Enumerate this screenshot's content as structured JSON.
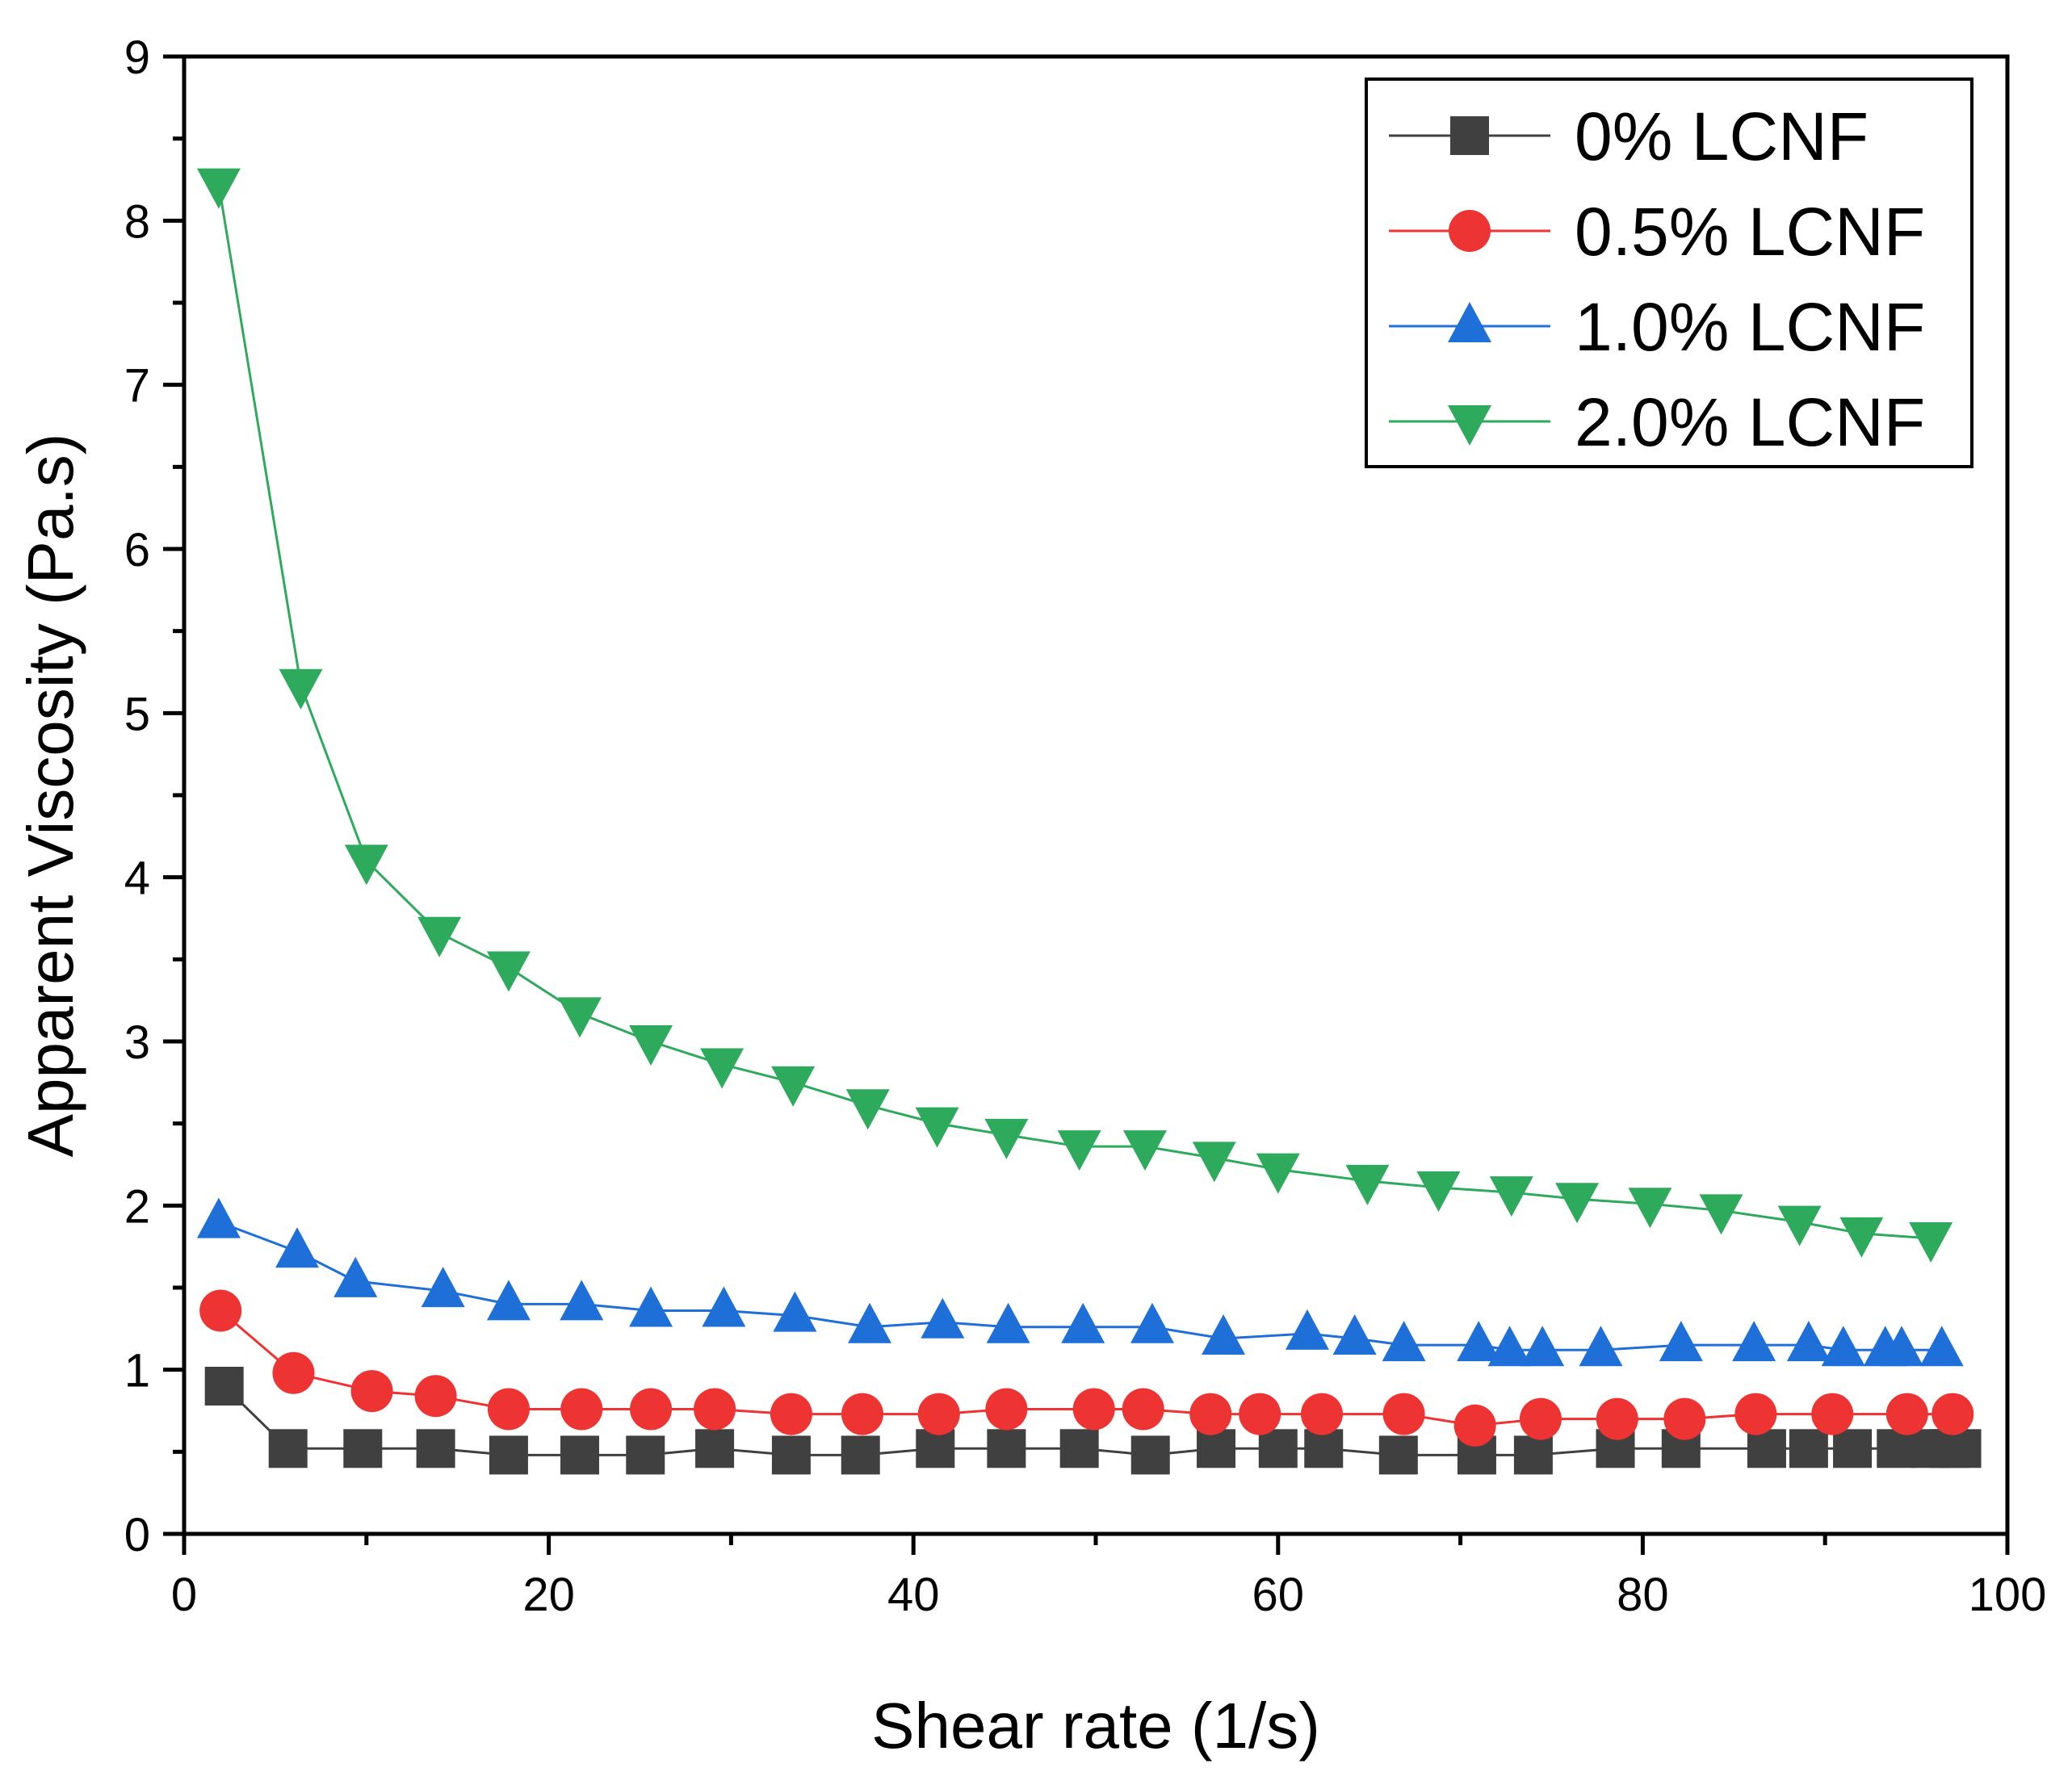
{
  "chart_data": {
    "type": "line",
    "xlabel": "Shear rate (1/s)",
    "ylabel": "Apparent Viscosity (Pa.s)",
    "xlim": [
      0,
      100
    ],
    "ylim": [
      0,
      9
    ],
    "x_ticks": [
      "0",
      "20",
      "40",
      "60",
      "80",
      "100"
    ],
    "y_ticks": [
      "0",
      "1",
      "2",
      "3",
      "4",
      "5",
      "6",
      "7",
      "8",
      "9"
    ],
    "grid": false,
    "legend_position": "top-right",
    "series": [
      {
        "name": "0% LCNF",
        "color": "#404040",
        "marker": "square",
        "x": [
          2.2,
          5.7,
          9.8,
          13.8,
          17.8,
          21.7,
          25.3,
          29.1,
          33.3,
          37.1,
          41.2,
          45.1,
          49.1,
          53.0,
          56.6,
          60.0,
          62.5,
          66.6,
          70.9,
          74.0,
          78.5,
          82.1,
          86.8,
          89.1,
          91.5,
          93.9,
          95.8,
          96.8,
          97.5
        ],
        "values": [
          0.9,
          0.52,
          0.52,
          0.52,
          0.48,
          0.48,
          0.48,
          0.52,
          0.48,
          0.48,
          0.52,
          0.52,
          0.52,
          0.48,
          0.52,
          0.52,
          0.52,
          0.48,
          0.48,
          0.48,
          0.52,
          0.52,
          0.52,
          0.52,
          0.52,
          0.52,
          0.52,
          0.52,
          0.52
        ]
      },
      {
        "name": "0.5% LCNF",
        "color": "#ee3333",
        "marker": "circle",
        "x": [
          2.0,
          6.0,
          10.3,
          13.8,
          17.8,
          21.8,
          25.6,
          29.1,
          33.3,
          37.2,
          41.4,
          45.1,
          49.9,
          52.6,
          56.3,
          59.0,
          62.4,
          66.9,
          70.8,
          74.4,
          78.6,
          82.3,
          86.2,
          90.4,
          94.5,
          97.0
        ],
        "values": [
          1.36,
          0.98,
          0.87,
          0.84,
          0.76,
          0.76,
          0.76,
          0.76,
          0.73,
          0.73,
          0.73,
          0.76,
          0.76,
          0.76,
          0.73,
          0.73,
          0.73,
          0.73,
          0.66,
          0.7,
          0.7,
          0.7,
          0.73,
          0.73,
          0.73,
          0.73
        ]
      },
      {
        "name": "1.0% LCNF",
        "color": "#1f6fd8",
        "marker": "triangle-up",
        "x": [
          1.9,
          6.2,
          9.4,
          14.2,
          17.8,
          21.8,
          25.6,
          29.6,
          33.5,
          37.6,
          41.6,
          45.2,
          49.3,
          53.1,
          57.0,
          61.6,
          64.2,
          66.9,
          71.0,
          72.7,
          74.5,
          77.7,
          82.1,
          86.1,
          89.1,
          91.0,
          93.3,
          94.2,
          96.4
        ],
        "values": [
          1.9,
          1.72,
          1.54,
          1.48,
          1.4,
          1.4,
          1.36,
          1.36,
          1.33,
          1.26,
          1.29,
          1.26,
          1.26,
          1.26,
          1.19,
          1.22,
          1.19,
          1.15,
          1.15,
          1.12,
          1.12,
          1.12,
          1.15,
          1.15,
          1.15,
          1.12,
          1.12,
          1.12,
          1.12
        ]
      },
      {
        "name": "2.0% LCNF",
        "color": "#2eaa5c",
        "marker": "triangle-down",
        "x": [
          1.9,
          6.4,
          10.0,
          14.0,
          17.8,
          21.7,
          25.6,
          29.5,
          33.4,
          37.5,
          41.3,
          45.1,
          49.1,
          52.7,
          56.5,
          60.0,
          64.9,
          68.8,
          72.8,
          76.4,
          80.4,
          84.3,
          88.6,
          92.0,
          95.8
        ],
        "values": [
          8.22,
          5.17,
          4.1,
          3.66,
          3.45,
          3.17,
          3.0,
          2.86,
          2.75,
          2.61,
          2.5,
          2.43,
          2.36,
          2.36,
          2.29,
          2.22,
          2.15,
          2.11,
          2.08,
          2.04,
          2.01,
          1.97,
          1.9,
          1.83,
          1.8
        ]
      }
    ]
  }
}
